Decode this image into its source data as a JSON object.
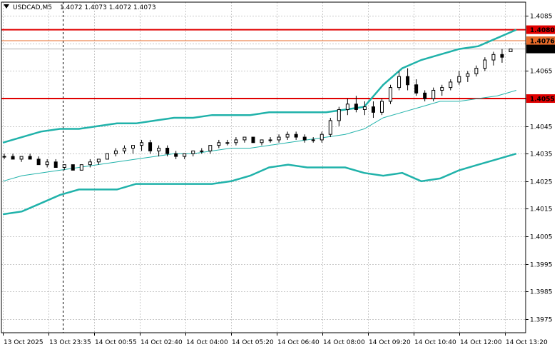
{
  "chart_data": {
    "type": "candlestick",
    "symbol_header": "USDCAD,M5",
    "ohlc_header": "1.4072 1.4073 1.4072 1.4073",
    "ylim": [
      1.397,
      1.409
    ],
    "y_ticks": [
      "1.4085",
      "1.4075",
      "1.4065",
      "1.4055",
      "1.4045",
      "1.4035",
      "1.4025",
      "1.4015",
      "1.4005",
      "1.3995",
      "1.3985",
      "1.3975"
    ],
    "x_ticks": [
      "13 Oct 2025",
      "13 Oct 23:35",
      "14 Oct 00:55",
      "14 Oct 02:40",
      "14 Oct 04:00",
      "14 Oct 05:20",
      "14 Oct 06:40",
      "14 Oct 08:00",
      "14 Oct 09:20",
      "14 Oct 10:40",
      "14 Oct 12:00",
      "14 Oct 13:20"
    ],
    "grid": true,
    "horizontal_levels": [
      {
        "price": 1.408,
        "label": "1.4080",
        "color": "#e00000"
      },
      {
        "price": 1.4076,
        "label": "1.4076",
        "color": "#e86b2a"
      },
      {
        "price": 1.4055,
        "label": "1.4055",
        "color": "#e00000"
      }
    ],
    "current_price": {
      "price": 1.4073,
      "label": "1.4073"
    },
    "bollinger_upper": [
      1.4039,
      1.4041,
      1.4043,
      1.4044,
      1.4044,
      1.4045,
      1.4046,
      1.4046,
      1.4047,
      1.4048,
      1.4048,
      1.4049,
      1.4049,
      1.4049,
      1.405,
      1.405,
      1.405,
      1.405,
      1.4051,
      1.4052,
      1.406,
      1.4066,
      1.4069,
      1.4071,
      1.4073,
      1.4074,
      1.4077,
      1.408
    ],
    "bollinger_mid": [
      1.4025,
      1.4027,
      1.4028,
      1.4029,
      1.403,
      1.4031,
      1.4032,
      1.4033,
      1.4034,
      1.4035,
      1.4035,
      1.4036,
      1.4037,
      1.4037,
      1.4038,
      1.4039,
      1.404,
      1.4041,
      1.4042,
      1.4044,
      1.4048,
      1.405,
      1.4052,
      1.4054,
      1.4054,
      1.4055,
      1.4056,
      1.4058
    ],
    "bollinger_lower": [
      1.4013,
      1.4014,
      1.4017,
      1.402,
      1.4022,
      1.4022,
      1.4022,
      1.4024,
      1.4024,
      1.4024,
      1.4024,
      1.4024,
      1.4025,
      1.4027,
      1.403,
      1.4031,
      1.403,
      1.403,
      1.403,
      1.4028,
      1.4027,
      1.4028,
      1.4025,
      1.4026,
      1.4029,
      1.4031,
      1.4033,
      1.4035
    ],
    "candles": [
      [
        1.4034,
        1.4035,
        1.4033,
        1.4034
      ],
      [
        1.4034,
        1.4035,
        1.4033,
        1.4033
      ],
      [
        1.4033,
        1.4034,
        1.4032,
        1.4034
      ],
      [
        1.4034,
        1.4035,
        1.4033,
        1.4033
      ],
      [
        1.4033,
        1.4034,
        1.4031,
        1.4031
      ],
      [
        1.4031,
        1.4033,
        1.403,
        1.4032
      ],
      [
        1.4032,
        1.4033,
        1.403,
        1.403
      ],
      [
        1.403,
        1.4031,
        1.4029,
        1.4031
      ],
      [
        1.4031,
        1.4031,
        1.4029,
        1.4029
      ],
      [
        1.4029,
        1.4031,
        1.4029,
        1.4031
      ],
      [
        1.4031,
        1.4033,
        1.403,
        1.4032
      ],
      [
        1.4032,
        1.4033,
        1.4031,
        1.4033
      ],
      [
        1.4033,
        1.4035,
        1.4033,
        1.4035
      ],
      [
        1.4035,
        1.4037,
        1.4034,
        1.4036
      ],
      [
        1.4036,
        1.4038,
        1.4035,
        1.4037
      ],
      [
        1.4037,
        1.4038,
        1.4035,
        1.4038
      ],
      [
        1.4038,
        1.404,
        1.4036,
        1.4039
      ],
      [
        1.4039,
        1.404,
        1.4035,
        1.4036
      ],
      [
        1.4036,
        1.4038,
        1.4034,
        1.4037
      ],
      [
        1.4037,
        1.4038,
        1.4034,
        1.4035
      ],
      [
        1.4035,
        1.4036,
        1.4033,
        1.4034
      ],
      [
        1.4034,
        1.4035,
        1.4033,
        1.4035
      ],
      [
        1.4035,
        1.4036,
        1.4034,
        1.4036
      ],
      [
        1.4036,
        1.4037,
        1.4035,
        1.4036
      ],
      [
        1.4036,
        1.4038,
        1.4035,
        1.4038
      ],
      [
        1.4038,
        1.404,
        1.4037,
        1.4039
      ],
      [
        1.4039,
        1.404,
        1.4038,
        1.4039
      ],
      [
        1.4039,
        1.4041,
        1.4038,
        1.404
      ],
      [
        1.404,
        1.4041,
        1.4039,
        1.4041
      ],
      [
        1.4041,
        1.4041,
        1.4039,
        1.4039
      ],
      [
        1.4039,
        1.404,
        1.4038,
        1.404
      ],
      [
        1.404,
        1.4041,
        1.4039,
        1.404
      ],
      [
        1.404,
        1.4042,
        1.4039,
        1.4041
      ],
      [
        1.4041,
        1.4043,
        1.404,
        1.4042
      ],
      [
        1.4042,
        1.4043,
        1.404,
        1.4041
      ],
      [
        1.4041,
        1.4042,
        1.4039,
        1.404
      ],
      [
        1.404,
        1.4041,
        1.4039,
        1.404
      ],
      [
        1.404,
        1.4043,
        1.4039,
        1.4042
      ],
      [
        1.4042,
        1.4048,
        1.4041,
        1.4047
      ],
      [
        1.4047,
        1.4052,
        1.4045,
        1.4051
      ],
      [
        1.4051,
        1.4055,
        1.4049,
        1.4053
      ],
      [
        1.4053,
        1.4056,
        1.405,
        1.4051
      ],
      [
        1.4051,
        1.4054,
        1.4049,
        1.4052
      ],
      [
        1.4052,
        1.4054,
        1.4048,
        1.405
      ],
      [
        1.405,
        1.4055,
        1.4049,
        1.4054
      ],
      [
        1.4054,
        1.406,
        1.4053,
        1.4059
      ],
      [
        1.4059,
        1.4065,
        1.4058,
        1.4063
      ],
      [
        1.4063,
        1.4066,
        1.4058,
        1.406
      ],
      [
        1.406,
        1.4062,
        1.4056,
        1.4057
      ],
      [
        1.4057,
        1.4058,
        1.4054,
        1.4055
      ],
      [
        1.4055,
        1.4059,
        1.4054,
        1.4058
      ],
      [
        1.4058,
        1.406,
        1.4056,
        1.4059
      ],
      [
        1.4059,
        1.4062,
        1.4058,
        1.4061
      ],
      [
        1.4061,
        1.4065,
        1.406,
        1.4063
      ],
      [
        1.4063,
        1.4065,
        1.4061,
        1.4064
      ],
      [
        1.4064,
        1.4067,
        1.4063,
        1.4066
      ],
      [
        1.4066,
        1.407,
        1.4065,
        1.4069
      ],
      [
        1.4069,
        1.4072,
        1.4067,
        1.4071
      ],
      [
        1.4071,
        1.4073,
        1.4068,
        1.407
      ],
      [
        1.4072,
        1.4073,
        1.4072,
        1.4073
      ]
    ]
  }
}
